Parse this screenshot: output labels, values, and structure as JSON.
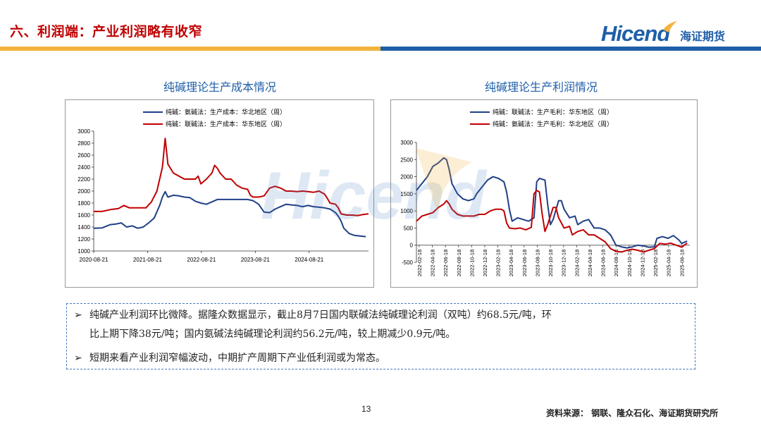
{
  "header": {
    "title": "六、利润端：产业利润略有收窄",
    "logo_main": "Hicend",
    "logo_sub": "海证期货"
  },
  "colors": {
    "title_red": "#c00000",
    "brand_blue": "#1f5fa8",
    "bar_gold": "#f2b33d",
    "bar_blue": "#1f5fa8",
    "series_blue": "#1f3f86",
    "series_red": "#c00000"
  },
  "left_chart": {
    "heading": "纯碱理论生产成本情况"
  },
  "right_chart": {
    "heading": "纯碱理论生产利润情况"
  },
  "chart_data": [
    {
      "type": "line",
      "title": "纯碱理论生产成本情况",
      "ylim": [
        1000,
        3000
      ],
      "yticks": [
        "3000",
        "2800",
        "2600",
        "2400",
        "2200",
        "2000",
        "1800",
        "1600",
        "1400",
        "1200",
        "1000"
      ],
      "xticks": [
        "2020-08-21",
        "2021-08-21",
        "2022-08-21",
        "2023-08-21",
        "2024-08-21"
      ],
      "legend_position": "top-center",
      "grid": false,
      "series": [
        {
          "name": "纯碱：氨碱法：生产成本：华北地区（周）",
          "color": "#1f3f86",
          "points": [
            [
              0.0,
              1380
            ],
            [
              0.03,
              1385
            ],
            [
              0.06,
              1440
            ],
            [
              0.08,
              1450
            ],
            [
              0.1,
              1470
            ],
            [
              0.12,
              1400
            ],
            [
              0.14,
              1420
            ],
            [
              0.16,
              1380
            ],
            [
              0.18,
              1400
            ],
            [
              0.2,
              1470
            ],
            [
              0.22,
              1550
            ],
            [
              0.24,
              1760
            ],
            [
              0.25,
              1900
            ],
            [
              0.26,
              1990
            ],
            [
              0.27,
              1900
            ],
            [
              0.29,
              1930
            ],
            [
              0.31,
              1920
            ],
            [
              0.33,
              1900
            ],
            [
              0.35,
              1890
            ],
            [
              0.37,
              1830
            ],
            [
              0.39,
              1800
            ],
            [
              0.41,
              1780
            ],
            [
              0.43,
              1820
            ],
            [
              0.45,
              1860
            ],
            [
              0.48,
              1860
            ],
            [
              0.52,
              1860
            ],
            [
              0.56,
              1860
            ],
            [
              0.58,
              1840
            ],
            [
              0.6,
              1780
            ],
            [
              0.62,
              1650
            ],
            [
              0.64,
              1640
            ],
            [
              0.66,
              1700
            ],
            [
              0.68,
              1740
            ],
            [
              0.7,
              1780
            ],
            [
              0.72,
              1770
            ],
            [
              0.74,
              1760
            ],
            [
              0.76,
              1740
            ],
            [
              0.78,
              1760
            ],
            [
              0.8,
              1740
            ],
            [
              0.82,
              1730
            ],
            [
              0.84,
              1720
            ],
            [
              0.86,
              1700
            ],
            [
              0.88,
              1640
            ],
            [
              0.89,
              1580
            ],
            [
              0.9,
              1500
            ],
            [
              0.91,
              1380
            ],
            [
              0.93,
              1290
            ],
            [
              0.95,
              1260
            ],
            [
              0.97,
              1250
            ],
            [
              0.99,
              1240
            ]
          ]
        },
        {
          "name": "纯碱：联碱法：生产成本：华东地区（周）",
          "color": "#c00000",
          "points": [
            [
              0.0,
              1660
            ],
            [
              0.03,
              1660
            ],
            [
              0.06,
              1690
            ],
            [
              0.09,
              1710
            ],
            [
              0.11,
              1760
            ],
            [
              0.13,
              1720
            ],
            [
              0.15,
              1720
            ],
            [
              0.17,
              1720
            ],
            [
              0.19,
              1720
            ],
            [
              0.21,
              1820
            ],
            [
              0.23,
              2000
            ],
            [
              0.25,
              2400
            ],
            [
              0.26,
              2880
            ],
            [
              0.27,
              2450
            ],
            [
              0.29,
              2300
            ],
            [
              0.31,
              2250
            ],
            [
              0.33,
              2200
            ],
            [
              0.35,
              2200
            ],
            [
              0.37,
              2200
            ],
            [
              0.38,
              2250
            ],
            [
              0.39,
              2120
            ],
            [
              0.41,
              2200
            ],
            [
              0.43,
              2300
            ],
            [
              0.44,
              2430
            ],
            [
              0.45,
              2380
            ],
            [
              0.46,
              2300
            ],
            [
              0.48,
              2200
            ],
            [
              0.5,
              2200
            ],
            [
              0.52,
              2100
            ],
            [
              0.54,
              2050
            ],
            [
              0.56,
              2030
            ],
            [
              0.57,
              1930
            ],
            [
              0.58,
              1900
            ],
            [
              0.6,
              1900
            ],
            [
              0.62,
              1920
            ],
            [
              0.64,
              2050
            ],
            [
              0.66,
              2080
            ],
            [
              0.68,
              2050
            ],
            [
              0.7,
              2000
            ],
            [
              0.72,
              2000
            ],
            [
              0.74,
              1990
            ],
            [
              0.76,
              2000
            ],
            [
              0.78,
              1990
            ],
            [
              0.8,
              1980
            ],
            [
              0.82,
              2000
            ],
            [
              0.84,
              1950
            ],
            [
              0.85,
              1880
            ],
            [
              0.86,
              1800
            ],
            [
              0.88,
              1780
            ],
            [
              0.89,
              1720
            ],
            [
              0.9,
              1620
            ],
            [
              0.92,
              1600
            ],
            [
              0.94,
              1600
            ],
            [
              0.96,
              1590
            ],
            [
              0.98,
              1610
            ],
            [
              1.0,
              1620
            ]
          ]
        }
      ]
    },
    {
      "type": "line",
      "title": "纯碱理论生产利润情况",
      "ylim": [
        -500,
        3000
      ],
      "yticks": [
        "3000",
        "2500",
        "2000",
        "1500",
        "1000",
        "500",
        "0",
        "-500"
      ],
      "xticks": [
        "2022-02-18",
        "2022-04-18",
        "2022-06-18",
        "2022-08-18",
        "2022-10-18",
        "2022-12-18",
        "2023-02-18",
        "2023-04-18",
        "2023-06-18",
        "2023-08-18",
        "2023-10-18",
        "2023-12-18",
        "2024-02-18",
        "2024-04-18",
        "2024-06-18",
        "2024-08-18",
        "2024-10-18",
        "2024-12-18",
        "2025-02-18",
        "2025-04-18",
        "2025-06-18"
      ],
      "legend_position": "top-center",
      "grid": false,
      "series": [
        {
          "name": "纯碱：联碱法：生产毛利：华东地区（周）",
          "color": "#1f3f86",
          "points": [
            [
              0.0,
              1600
            ],
            [
              0.02,
              1800
            ],
            [
              0.04,
              2000
            ],
            [
              0.06,
              2300
            ],
            [
              0.08,
              2400
            ],
            [
              0.1,
              2550
            ],
            [
              0.11,
              2500
            ],
            [
              0.12,
              2200
            ],
            [
              0.13,
              1800
            ],
            [
              0.15,
              1500
            ],
            [
              0.17,
              1350
            ],
            [
              0.19,
              1300
            ],
            [
              0.21,
              1350
            ],
            [
              0.22,
              1500
            ],
            [
              0.24,
              1700
            ],
            [
              0.26,
              1900
            ],
            [
              0.28,
              2000
            ],
            [
              0.3,
              1950
            ],
            [
              0.32,
              1850
            ],
            [
              0.33,
              1550
            ],
            [
              0.34,
              1050
            ],
            [
              0.35,
              700
            ],
            [
              0.37,
              800
            ],
            [
              0.39,
              750
            ],
            [
              0.41,
              700
            ],
            [
              0.43,
              800
            ],
            [
              0.44,
              1850
            ],
            [
              0.45,
              1950
            ],
            [
              0.47,
              1900
            ],
            [
              0.48,
              1200
            ],
            [
              0.49,
              600
            ],
            [
              0.5,
              750
            ],
            [
              0.52,
              1300
            ],
            [
              0.53,
              1300
            ],
            [
              0.54,
              1050
            ],
            [
              0.56,
              800
            ],
            [
              0.58,
              850
            ],
            [
              0.59,
              600
            ],
            [
              0.61,
              700
            ],
            [
              0.63,
              750
            ],
            [
              0.65,
              500
            ],
            [
              0.67,
              500
            ],
            [
              0.69,
              450
            ],
            [
              0.71,
              300
            ],
            [
              0.73,
              0
            ],
            [
              0.75,
              -50
            ],
            [
              0.77,
              -80
            ],
            [
              0.79,
              -50
            ],
            [
              0.81,
              0
            ],
            [
              0.83,
              -20
            ],
            [
              0.85,
              -60
            ],
            [
              0.87,
              -50
            ],
            [
              0.88,
              200
            ],
            [
              0.9,
              250
            ],
            [
              0.92,
              200
            ],
            [
              0.94,
              280
            ],
            [
              0.96,
              150
            ],
            [
              0.97,
              50
            ],
            [
              0.99,
              120
            ]
          ]
        },
        {
          "name": "纯碱：氨碱法：生产毛利：华北地区（周）",
          "color": "#c00000",
          "points": [
            [
              0.0,
              700
            ],
            [
              0.02,
              850
            ],
            [
              0.04,
              900
            ],
            [
              0.06,
              950
            ],
            [
              0.08,
              1100
            ],
            [
              0.1,
              1200
            ],
            [
              0.11,
              1300
            ],
            [
              0.12,
              1200
            ],
            [
              0.13,
              1050
            ],
            [
              0.15,
              900
            ],
            [
              0.17,
              850
            ],
            [
              0.19,
              850
            ],
            [
              0.21,
              850
            ],
            [
              0.23,
              900
            ],
            [
              0.25,
              900
            ],
            [
              0.27,
              1000
            ],
            [
              0.29,
              1050
            ],
            [
              0.31,
              1050
            ],
            [
              0.32,
              1000
            ],
            [
              0.33,
              650
            ],
            [
              0.34,
              500
            ],
            [
              0.36,
              480
            ],
            [
              0.38,
              500
            ],
            [
              0.4,
              450
            ],
            [
              0.42,
              520
            ],
            [
              0.43,
              1500
            ],
            [
              0.44,
              1600
            ],
            [
              0.45,
              1550
            ],
            [
              0.46,
              900
            ],
            [
              0.47,
              400
            ],
            [
              0.48,
              600
            ],
            [
              0.5,
              1100
            ],
            [
              0.51,
              1100
            ],
            [
              0.52,
              800
            ],
            [
              0.54,
              500
            ],
            [
              0.56,
              550
            ],
            [
              0.57,
              300
            ],
            [
              0.59,
              400
            ],
            [
              0.61,
              450
            ],
            [
              0.63,
              300
            ],
            [
              0.65,
              300
            ],
            [
              0.67,
              200
            ],
            [
              0.69,
              100
            ],
            [
              0.71,
              -100
            ],
            [
              0.73,
              -180
            ],
            [
              0.75,
              -200
            ],
            [
              0.77,
              -150
            ],
            [
              0.79,
              -120
            ],
            [
              0.81,
              -150
            ],
            [
              0.83,
              -200
            ],
            [
              0.85,
              -150
            ],
            [
              0.87,
              -100
            ],
            [
              0.89,
              50
            ],
            [
              0.91,
              30
            ],
            [
              0.93,
              60
            ],
            [
              0.95,
              0
            ],
            [
              0.97,
              -60
            ],
            [
              0.99,
              60
            ]
          ]
        }
      ]
    }
  ],
  "bullets": [
    {
      "line1": "纯碱产业利润环比微降。据隆众数据显示，截止8月7日国内联碱法纯碱理论利润（双吨）约68.5元/吨，环",
      "line2": "比上期下降38元/吨；国内氨碱法纯碱理论利润约56.2元/吨，较上期减少0.9元/吨。"
    },
    {
      "line1": "短期来看产业利润窄幅波动，中期扩产周期下产业低利润或为常态。"
    }
  ],
  "footer": {
    "page_number": "13",
    "source": "资料来源：  钢联、隆众石化、海证期货研究所"
  }
}
